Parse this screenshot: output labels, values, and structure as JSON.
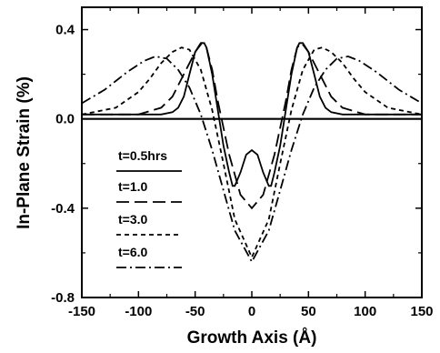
{
  "chart_data": {
    "type": "line",
    "title": "",
    "xlabel": "Growth Axis (Å)",
    "ylabel": "In-Plane Strain (%)",
    "xlim": [
      -150,
      150
    ],
    "ylim": [
      -0.8,
      0.5
    ],
    "x_ticks": [
      -150,
      -100,
      -50,
      0,
      50,
      100,
      150
    ],
    "x_tick_labels": [
      "-150",
      "-100",
      "-50",
      "0",
      "50",
      "100",
      "150"
    ],
    "y_ticks": [
      -0.8,
      -0.4,
      0.0,
      0.4
    ],
    "y_tick_labels": [
      "-0.8",
      "-0.4",
      "0.0",
      "0.4"
    ],
    "legend_position": "lower-left inside",
    "series": [
      {
        "name": "t=0.5hrs",
        "dash": "solid",
        "x": [
          -150,
          -110,
          -80,
          -70,
          -65,
          -60,
          -55,
          -50,
          -45,
          -42,
          -40,
          -35,
          -30,
          -25,
          -20,
          -17,
          -15,
          -10,
          -5,
          0,
          5,
          10,
          15,
          17,
          20,
          25,
          30,
          35,
          40,
          42,
          45,
          50,
          55,
          60,
          65,
          70,
          80,
          110,
          150
        ],
        "y": [
          0.02,
          0.02,
          0.02,
          0.03,
          0.05,
          0.1,
          0.2,
          0.3,
          0.34,
          0.34,
          0.32,
          0.2,
          0.04,
          -0.12,
          -0.24,
          -0.3,
          -0.3,
          -0.24,
          -0.16,
          -0.14,
          -0.16,
          -0.24,
          -0.3,
          -0.3,
          -0.24,
          -0.12,
          0.04,
          0.2,
          0.32,
          0.34,
          0.34,
          0.3,
          0.2,
          0.1,
          0.05,
          0.03,
          0.02,
          0.02,
          0.02
        ]
      },
      {
        "name": "t=1.0",
        "dash": "long-dash",
        "x": [
          -150,
          -100,
          -80,
          -70,
          -60,
          -50,
          -44,
          -40,
          -35,
          -30,
          -20,
          -10,
          0,
          10,
          20,
          30,
          35,
          40,
          44,
          50,
          60,
          70,
          80,
          100,
          150
        ],
        "y": [
          0.02,
          0.02,
          0.05,
          0.1,
          0.2,
          0.3,
          0.34,
          0.32,
          0.22,
          0.08,
          -0.16,
          -0.34,
          -0.4,
          -0.34,
          -0.16,
          0.08,
          0.22,
          0.32,
          0.34,
          0.3,
          0.2,
          0.1,
          0.05,
          0.02,
          0.02
        ]
      },
      {
        "name": "t=3.0",
        "dash": "short-dash",
        "x": [
          -150,
          -120,
          -100,
          -90,
          -80,
          -70,
          -62,
          -55,
          -45,
          -35,
          -25,
          -15,
          0,
          15,
          25,
          35,
          45,
          55,
          62,
          70,
          80,
          90,
          100,
          120,
          150
        ],
        "y": [
          0.02,
          0.05,
          0.12,
          0.18,
          0.25,
          0.3,
          0.32,
          0.31,
          0.22,
          0.04,
          -0.2,
          -0.45,
          -0.62,
          -0.45,
          -0.2,
          0.04,
          0.22,
          0.31,
          0.32,
          0.3,
          0.25,
          0.18,
          0.12,
          0.05,
          0.02
        ]
      },
      {
        "name": "t=6.0",
        "dash": "dash-dot",
        "x": [
          -150,
          -130,
          -110,
          -95,
          -85,
          -75,
          -65,
          -55,
          -45,
          -35,
          -25,
          -15,
          0,
          15,
          25,
          35,
          45,
          55,
          65,
          75,
          85,
          95,
          110,
          130,
          150
        ],
        "y": [
          0.07,
          0.13,
          0.21,
          0.26,
          0.28,
          0.27,
          0.22,
          0.14,
          0.02,
          -0.14,
          -0.32,
          -0.5,
          -0.64,
          -0.5,
          -0.32,
          -0.14,
          0.02,
          0.14,
          0.22,
          0.27,
          0.28,
          0.26,
          0.21,
          0.13,
          0.07
        ]
      }
    ]
  }
}
